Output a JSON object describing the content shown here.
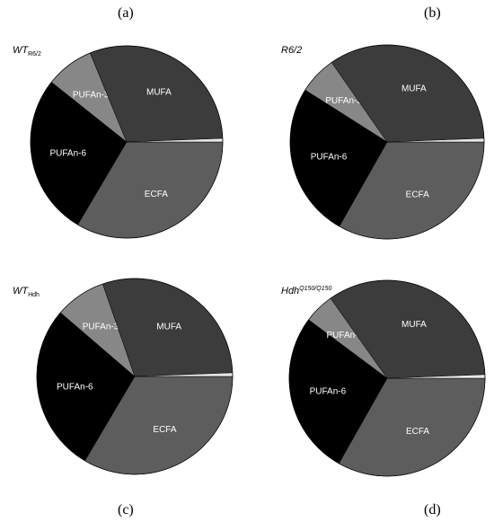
{
  "panel_letters": [
    "(a)",
    "(b)",
    "(c)",
    "(d)"
  ],
  "panel_groups": [
    {
      "main": "WT",
      "sub": "R6/2",
      "sup": ""
    },
    {
      "main": "R6/2",
      "sub": "",
      "sup": ""
    },
    {
      "main": "WT",
      "sub": "Hdh",
      "sup": ""
    },
    {
      "main": "Hdh",
      "sub": "",
      "sup": "Q150/Q150"
    }
  ],
  "colors": {
    "ECFA": "#5d5d5d",
    "PUFAn-6": "#000000",
    "PUFAn-3": "#878787",
    "MUFA": "#3c3c3c",
    "other": "#e8e8e8",
    "label_light": "#ffffff"
  },
  "chart_data": [
    {
      "type": "pie",
      "title": "WT R6/2",
      "categories": [
        "ECFA",
        "PUFAn-6",
        "PUFAn-3",
        "MUFA",
        ""
      ],
      "values": [
        33.5,
        27.2,
        8.1,
        30.6,
        0.6
      ]
    },
    {
      "type": "pie",
      "title": "R6/2",
      "categories": [
        "ECFA",
        "PUFAn-6",
        "PUFAn-3",
        "MUFA",
        ""
      ],
      "values": [
        33.2,
        25.8,
        6.3,
        34.1,
        0.6
      ]
    },
    {
      "type": "pie",
      "title": "WT Hdh",
      "categories": [
        "ECFA",
        "PUFAn-6",
        "PUFAn-3",
        "MUFA",
        ""
      ],
      "values": [
        33.5,
        27.8,
        8.4,
        29.7,
        0.6
      ]
    },
    {
      "type": "pie",
      "title": "Hdh Q150/Q150",
      "categories": [
        "ECFA",
        "PUFAn-6",
        "PUFAn-3",
        "MUFA",
        ""
      ],
      "values": [
        33.2,
        27.0,
        5.0,
        34.2,
        0.6
      ]
    }
  ]
}
